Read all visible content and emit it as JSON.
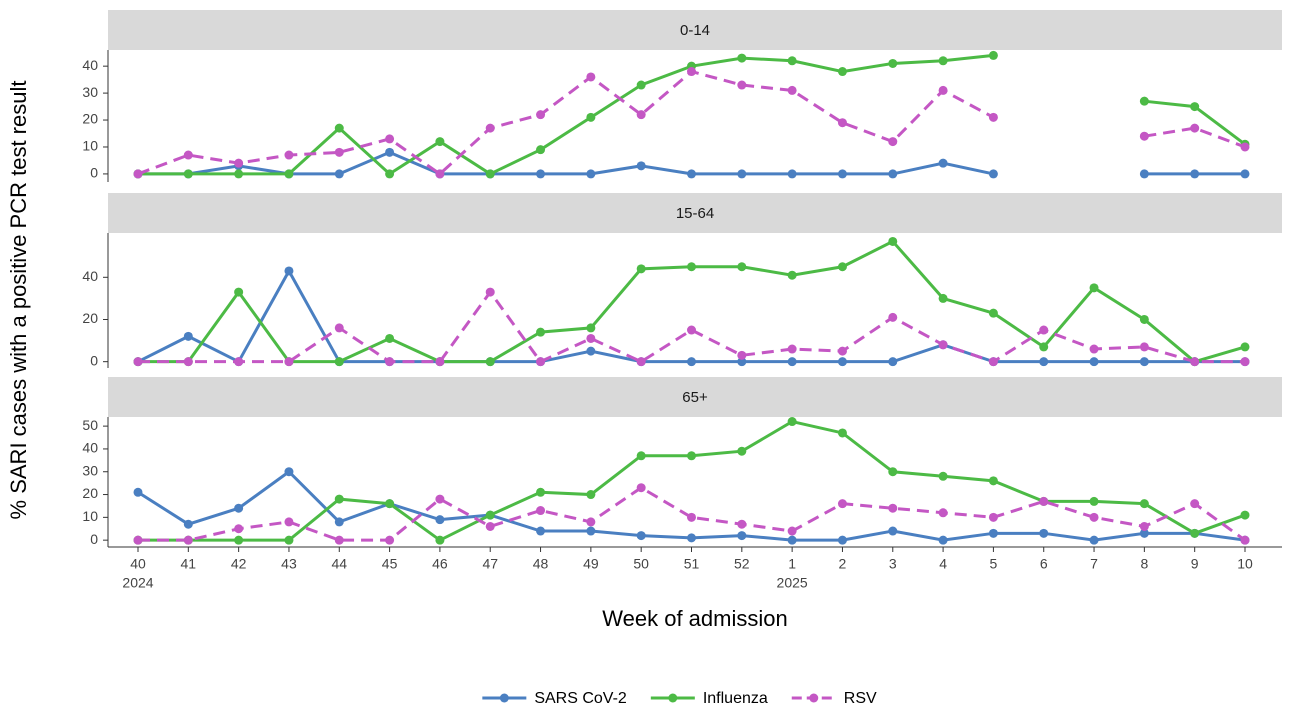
{
  "chart_data": [
    {
      "type": "line",
      "title": "0-14",
      "ylim": [
        -3,
        46
      ],
      "yticks": [
        0,
        10,
        20,
        30,
        40
      ],
      "series": [
        {
          "name": "SARS CoV-2",
          "color": "#4a7fc1",
          "dash": false,
          "values": [
            0,
            0,
            3,
            0,
            0,
            8,
            0,
            0,
            0,
            0,
            3,
            0,
            0,
            0,
            0,
            0,
            4,
            0,
            null,
            null,
            0,
            0,
            0
          ]
        },
        {
          "name": "Influenza",
          "color": "#4cba45",
          "dash": false,
          "values": [
            0,
            0,
            0,
            0,
            17,
            0,
            12,
            0,
            9,
            21,
            33,
            40,
            43,
            42,
            38,
            41,
            42,
            44,
            null,
            null,
            27,
            25,
            11
          ]
        },
        {
          "name": "RSV",
          "color": "#c457c4",
          "dash": true,
          "values": [
            0,
            7,
            4,
            7,
            8,
            13,
            0,
            17,
            22,
            36,
            22,
            38,
            33,
            31,
            19,
            12,
            31,
            21,
            null,
            null,
            14,
            17,
            10
          ]
        }
      ]
    },
    {
      "type": "line",
      "title": "15-64",
      "ylim": [
        -3,
        61
      ],
      "yticks": [
        0,
        20,
        40
      ],
      "series": [
        {
          "color": "#4a7fc1",
          "dash": false,
          "values": [
            0,
            12,
            0,
            43,
            0,
            0,
            0,
            0,
            0,
            5,
            0,
            0,
            0,
            0,
            0,
            0,
            8,
            0,
            0,
            0,
            0,
            0,
            0
          ]
        },
        {
          "color": "#4cba45",
          "dash": false,
          "values": [
            0,
            0,
            33,
            0,
            0,
            11,
            0,
            0,
            14,
            16,
            44,
            45,
            45,
            41,
            45,
            57,
            30,
            23,
            7,
            35,
            20,
            0,
            7
          ]
        },
        {
          "color": "#c457c4",
          "dash": true,
          "values": [
            0,
            0,
            0,
            0,
            16,
            0,
            0,
            33,
            0,
            11,
            0,
            15,
            3,
            6,
            5,
            21,
            8,
            0,
            15,
            6,
            7,
            0,
            0
          ]
        }
      ]
    },
    {
      "type": "line",
      "title": "65+",
      "ylim": [
        -3,
        54
      ],
      "yticks": [
        0,
        10,
        20,
        30,
        40,
        50
      ],
      "x_label": "Week of admission",
      "y_label": "% SARI cases with a positive PCR test result",
      "categories": [
        "40",
        "41",
        "42",
        "43",
        "44",
        "45",
        "46",
        "47",
        "48",
        "49",
        "50",
        "51",
        "52",
        "1",
        "2",
        "3",
        "4",
        "5",
        "6",
        "7",
        "8",
        "9",
        "10"
      ],
      "years": [
        "2024",
        null,
        null,
        null,
        null,
        null,
        null,
        null,
        null,
        null,
        null,
        null,
        null,
        "2025",
        null,
        null,
        null,
        null,
        null,
        null,
        null,
        null,
        null
      ],
      "series": [
        {
          "color": "#4a7fc1",
          "dash": false,
          "values": [
            21,
            7,
            14,
            30,
            8,
            16,
            9,
            11,
            4,
            4,
            2,
            1,
            2,
            0,
            0,
            4,
            0,
            3,
            3,
            0,
            3,
            3,
            0
          ]
        },
        {
          "color": "#4cba45",
          "dash": false,
          "values": [
            0,
            0,
            0,
            0,
            18,
            16,
            0,
            11,
            21,
            20,
            37,
            37,
            39,
            52,
            47,
            30,
            28,
            26,
            17,
            17,
            16,
            3,
            11
          ]
        },
        {
          "color": "#c457c4",
          "dash": true,
          "values": [
            0,
            0,
            5,
            8,
            0,
            0,
            18,
            6,
            13,
            8,
            23,
            10,
            7,
            4,
            16,
            14,
            12,
            10,
            17,
            10,
            6,
            16,
            0
          ]
        }
      ]
    }
  ]
}
